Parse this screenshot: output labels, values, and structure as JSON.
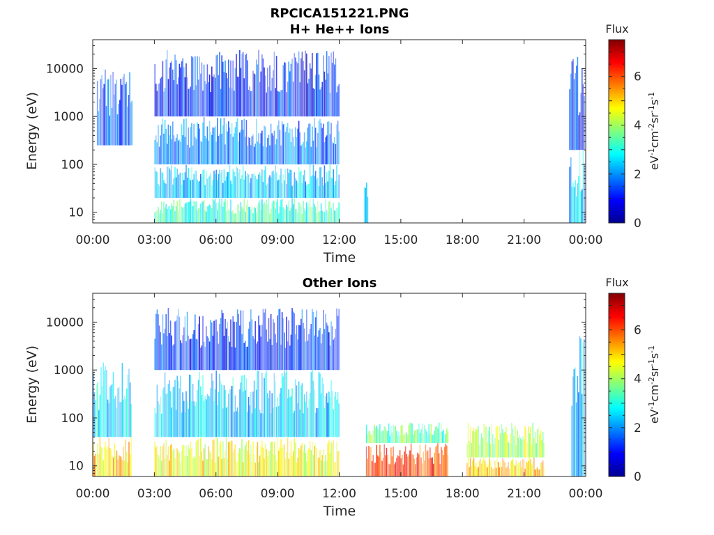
{
  "figure": {
    "title": "RPCICA151221.PNG",
    "panels": [
      {
        "id": "top",
        "title": "H+ He++ Ions",
        "xlabel": "Time",
        "ylabel": "Energy (eV)",
        "colorbar": {
          "label": "Flux",
          "unit": "eV-1cm-2sr-1s-1"
        }
      },
      {
        "id": "bottom",
        "title": "Other Ions",
        "xlabel": "Time",
        "ylabel": "Energy (eV)",
        "colorbar": {
          "label": "Flux",
          "unit": "eV-1cm-2sr-1s-1"
        }
      }
    ]
  },
  "chart_data": [
    {
      "type": "heatmap",
      "title": "H+ He++ Ions",
      "xlabel": "Time",
      "ylabel": "Energy (eV)",
      "x_unit": "hours",
      "xlim": [
        0,
        24
      ],
      "xticks": [
        0,
        3,
        6,
        9,
        12,
        15,
        18,
        21,
        24
      ],
      "xticklabels": [
        "00:00",
        "03:00",
        "06:00",
        "09:00",
        "12:00",
        "15:00",
        "18:00",
        "21:00",
        "00:00"
      ],
      "yscale": "log",
      "ylim": [
        6,
        40000
      ],
      "yticks": [
        10,
        100,
        1000,
        10000
      ],
      "yticklabels": [
        "10",
        "100",
        "1000",
        "10000"
      ],
      "colorbar": {
        "label": "Flux",
        "clim": [
          0,
          7.5
        ],
        "ticks": [
          0,
          2,
          4,
          6
        ],
        "colormap": "jet"
      },
      "regions": [
        {
          "t_start": 0.2,
          "t_end": 1.9,
          "e_min": 250,
          "e_max": 13000,
          "flux": 1.5
        },
        {
          "t_start": 3.0,
          "t_end": 12.0,
          "e_min": 1000,
          "e_max": 25000,
          "flux": 1.2
        },
        {
          "t_start": 3.0,
          "t_end": 12.0,
          "e_min": 100,
          "e_max": 1000,
          "flux": 1.8
        },
        {
          "t_start": 3.0,
          "t_end": 12.0,
          "e_min": 20,
          "e_max": 100,
          "flux": 2.4
        },
        {
          "t_start": 3.0,
          "t_end": 12.0,
          "e_min": 6,
          "e_max": 20,
          "flux": 3.2
        },
        {
          "t_start": 13.2,
          "t_end": 13.4,
          "e_min": 6,
          "e_max": 50,
          "flux": 2.3
        },
        {
          "t_start": 23.2,
          "t_end": 23.95,
          "e_min": 200,
          "e_max": 20000,
          "flux": 1.2
        },
        {
          "t_start": 23.2,
          "t_end": 23.95,
          "e_min": 6,
          "e_max": 200,
          "flux": 2.3
        }
      ]
    },
    {
      "type": "heatmap",
      "title": "Other Ions",
      "xlabel": "Time",
      "ylabel": "Energy (eV)",
      "x_unit": "hours",
      "xlim": [
        0,
        24
      ],
      "xticks": [
        0,
        3,
        6,
        9,
        12,
        15,
        18,
        21,
        24
      ],
      "xticklabels": [
        "00:00",
        "03:00",
        "06:00",
        "09:00",
        "12:00",
        "15:00",
        "18:00",
        "21:00",
        "00:00"
      ],
      "yscale": "log",
      "ylim": [
        6,
        40000
      ],
      "yticks": [
        10,
        100,
        1000,
        10000
      ],
      "yticklabels": [
        "10",
        "100",
        "1000",
        "10000"
      ],
      "colorbar": {
        "label": "Flux",
        "clim": [
          0,
          7.5
        ],
        "ticks": [
          0,
          2,
          4,
          6
        ],
        "colormap": "jet"
      },
      "regions": [
        {
          "t_start": 0.0,
          "t_end": 1.9,
          "e_min": 6,
          "e_max": 40,
          "flux": 5.0
        },
        {
          "t_start": 0.0,
          "t_end": 1.9,
          "e_min": 40,
          "e_max": 1500,
          "flux": 2.6
        },
        {
          "t_start": 3.0,
          "t_end": 12.0,
          "e_min": 1000,
          "e_max": 20000,
          "flux": 1.3
        },
        {
          "t_start": 3.0,
          "t_end": 12.0,
          "e_min": 40,
          "e_max": 1000,
          "flux": 2.4
        },
        {
          "t_start": 3.0,
          "t_end": 12.0,
          "e_min": 6,
          "e_max": 40,
          "flux": 4.6
        },
        {
          "t_start": 13.3,
          "t_end": 17.3,
          "e_min": 30,
          "e_max": 80,
          "flux": 3.5
        },
        {
          "t_start": 13.3,
          "t_end": 17.3,
          "e_min": 6,
          "e_max": 30,
          "flux": 6.2
        },
        {
          "t_start": 18.2,
          "t_end": 22.0,
          "e_min": 15,
          "e_max": 80,
          "flux": 4.1
        },
        {
          "t_start": 18.2,
          "t_end": 22.0,
          "e_min": 6,
          "e_max": 15,
          "flux": 5.2
        },
        {
          "t_start": 23.3,
          "t_end": 23.95,
          "e_min": 6,
          "e_max": 8000,
          "flux": 2.5
        }
      ]
    }
  ]
}
